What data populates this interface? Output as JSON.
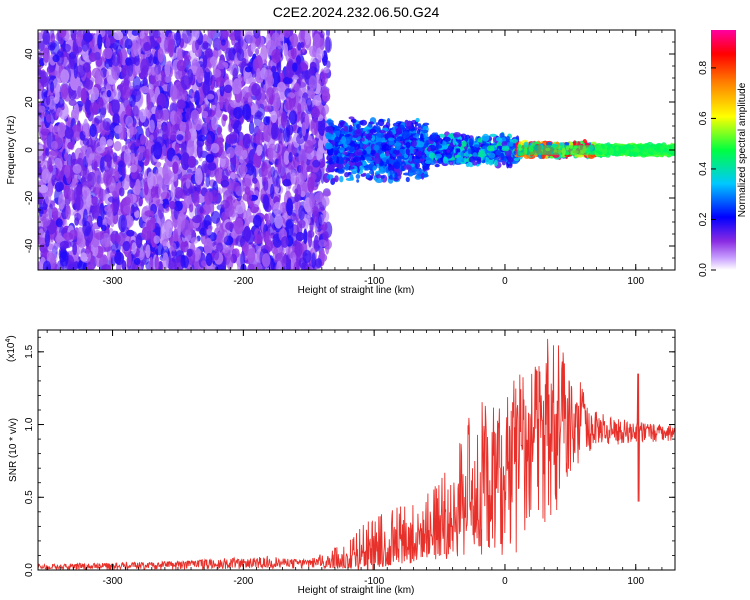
{
  "figure": {
    "title": "C2E2.2024.232.06.50.G24"
  },
  "chart_data": [
    {
      "type": "heatmap",
      "xlabel": "Height of straight line (km)",
      "ylabel": "Frequency (Hz)",
      "xlim": [
        -357,
        130
      ],
      "ylim": [
        -50,
        50
      ],
      "x_ticks": [
        -300,
        -200,
        -100,
        0,
        100
      ],
      "y_ticks": [
        -40,
        -20,
        0,
        20,
        40
      ],
      "colorbar": {
        "label": "Normalized spectral amplitude",
        "range": [
          0.0,
          0.95
        ],
        "ticks": [
          0.0,
          0.2,
          0.4,
          0.6,
          0.8
        ],
        "colormap": [
          "#ffffff",
          "#8a2be2",
          "#0000ff",
          "#00c8ff",
          "#00ff40",
          "#ffff00",
          "#ff8000",
          "#ff0000",
          "#ff00a0"
        ]
      },
      "regions": [
        {
          "x_range": [
            -357,
            -135
          ],
          "freq_spread_hz": 50,
          "amplitude": [
            0.0,
            0.15
          ]
        },
        {
          "x_range": [
            -135,
            -60
          ],
          "freq_spread_hz": 14,
          "amplitude": [
            0.1,
            0.3
          ]
        },
        {
          "x_range": [
            -60,
            10
          ],
          "freq_spread_hz": 7,
          "amplitude": [
            0.1,
            0.4
          ]
        },
        {
          "x_range": [
            10,
            70
          ],
          "freq_spread_hz": 3,
          "amplitude": [
            0.2,
            0.9
          ]
        },
        {
          "x_range": [
            70,
            130
          ],
          "freq_spread_hz": 2,
          "amplitude": [
            0.4,
            0.5
          ]
        }
      ]
    },
    {
      "type": "line",
      "xlabel": "Height of straight line (km)",
      "ylabel": "SNR (10 * v/v)",
      "y_multiplier": "(x10",
      "y_multiplier_exp": "4",
      "y_multiplier_close": ")",
      "xlim": [
        -357,
        130
      ],
      "ylim": [
        0.0,
        1.65
      ],
      "x_ticks": [
        -300,
        -200,
        -100,
        0,
        100
      ],
      "y_ticks": [
        "0.0",
        "0.5",
        "1.0",
        "1.5"
      ],
      "series_color": "#e8302a",
      "envelope": [
        {
          "x": -357,
          "low": 0.0,
          "mid": 0.02,
          "high": 0.04
        },
        {
          "x": -250,
          "low": 0.0,
          "mid": 0.04,
          "high": 0.06
        },
        {
          "x": -180,
          "low": 0.01,
          "mid": 0.05,
          "high": 0.1
        },
        {
          "x": -150,
          "low": 0.01,
          "mid": 0.05,
          "high": 0.07
        },
        {
          "x": -120,
          "low": 0.01,
          "mid": 0.07,
          "high": 0.2
        },
        {
          "x": -100,
          "low": 0.02,
          "mid": 0.12,
          "high": 0.4
        },
        {
          "x": -80,
          "low": 0.03,
          "mid": 0.2,
          "high": 0.45
        },
        {
          "x": -60,
          "low": 0.05,
          "mid": 0.25,
          "high": 0.55
        },
        {
          "x": -40,
          "low": 0.08,
          "mid": 0.35,
          "high": 0.8
        },
        {
          "x": -20,
          "low": 0.1,
          "mid": 0.6,
          "high": 1.2
        },
        {
          "x": 0,
          "low": 0.05,
          "mid": 0.8,
          "high": 1.25
        },
        {
          "x": 20,
          "low": 0.2,
          "mid": 0.95,
          "high": 1.5
        },
        {
          "x": 40,
          "low": 0.4,
          "mid": 1.0,
          "high": 1.65
        },
        {
          "x": 60,
          "low": 0.8,
          "mid": 1.0,
          "high": 1.25
        },
        {
          "x": 80,
          "low": 0.85,
          "mid": 0.95,
          "high": 1.05
        },
        {
          "x": 100,
          "low": 0.88,
          "mid": 0.95,
          "high": 1.02
        },
        {
          "x": 130,
          "low": 0.88,
          "mid": 0.94,
          "high": 1.0
        }
      ],
      "spikes": [
        {
          "x": 102,
          "low": 0.47,
          "high": 1.35
        }
      ]
    }
  ]
}
